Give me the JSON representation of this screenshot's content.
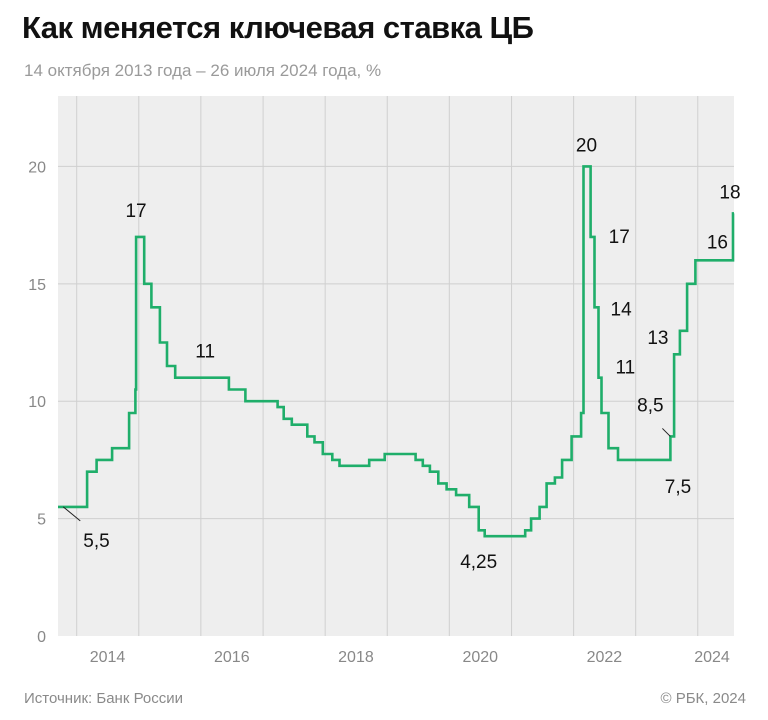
{
  "header": {
    "title": "Как меняется ключевая ставка ЦБ",
    "subtitle": "14 октября 2013 года – 26 июля 2024 года, %"
  },
  "footer": {
    "source": "Источник: Банк России",
    "copyright": "© РБК, 2024"
  },
  "colors": {
    "line": "#1fae6a",
    "plot_bg": "#eeeeee",
    "grid": "#cfcfcf",
    "tick_text": "#888888",
    "annotation_text": "#111111"
  },
  "chart_data": {
    "type": "line",
    "title": "Как меняется ключевая ставка ЦБ",
    "subtitle": "14 октября 2013 года – 26 июля 2024 года, %",
    "xlabel": "",
    "ylabel": "",
    "xlim": [
      "2013-09-13",
      "2024-08-01"
    ],
    "ylim": [
      0,
      23
    ],
    "yticks": [
      0,
      5,
      10,
      15,
      20
    ],
    "xticks": [
      "2014",
      "2016",
      "2018",
      "2020",
      "2022",
      "2024"
    ],
    "grid": true,
    "legend": "none",
    "series": [
      {
        "step": true,
        "points": [
          [
            "2013-09-13",
            5.5
          ],
          [
            "2014-03-03",
            7.0
          ],
          [
            "2014-04-28",
            7.5
          ],
          [
            "2014-07-28",
            8.0
          ],
          [
            "2014-11-05",
            9.5
          ],
          [
            "2014-12-12",
            10.5
          ],
          [
            "2014-12-16",
            17.0
          ],
          [
            "2015-02-02",
            15.0
          ],
          [
            "2015-03-16",
            14.0
          ],
          [
            "2015-05-05",
            12.5
          ],
          [
            "2015-06-16",
            11.5
          ],
          [
            "2015-08-03",
            11.0
          ],
          [
            "2016-06-14",
            10.5
          ],
          [
            "2016-09-19",
            10.0
          ],
          [
            "2017-03-27",
            9.75
          ],
          [
            "2017-05-02",
            9.25
          ],
          [
            "2017-06-19",
            9.0
          ],
          [
            "2017-09-18",
            8.5
          ],
          [
            "2017-10-30",
            8.25
          ],
          [
            "2017-12-18",
            7.75
          ],
          [
            "2018-02-12",
            7.5
          ],
          [
            "2018-03-26",
            7.25
          ],
          [
            "2018-09-17",
            7.5
          ],
          [
            "2018-12-17",
            7.75
          ],
          [
            "2019-06-17",
            7.5
          ],
          [
            "2019-07-29",
            7.25
          ],
          [
            "2019-09-09",
            7.0
          ],
          [
            "2019-10-28",
            6.5
          ],
          [
            "2019-12-16",
            6.25
          ],
          [
            "2020-02-10",
            6.0
          ],
          [
            "2020-04-27",
            5.5
          ],
          [
            "2020-06-22",
            4.5
          ],
          [
            "2020-07-27",
            4.25
          ],
          [
            "2021-03-22",
            4.5
          ],
          [
            "2021-04-26",
            5.0
          ],
          [
            "2021-06-15",
            5.5
          ],
          [
            "2021-07-26",
            6.5
          ],
          [
            "2021-09-13",
            6.75
          ],
          [
            "2021-10-25",
            7.5
          ],
          [
            "2021-12-20",
            8.5
          ],
          [
            "2022-02-14",
            9.5
          ],
          [
            "2022-02-28",
            20.0
          ],
          [
            "2022-04-11",
            17.0
          ],
          [
            "2022-05-04",
            14.0
          ],
          [
            "2022-05-27",
            11.0
          ],
          [
            "2022-06-14",
            9.5
          ],
          [
            "2022-07-25",
            8.0
          ],
          [
            "2022-09-19",
            7.5
          ],
          [
            "2023-07-24",
            8.5
          ],
          [
            "2023-08-15",
            12.0
          ],
          [
            "2023-09-18",
            13.0
          ],
          [
            "2023-10-30",
            15.0
          ],
          [
            "2023-12-18",
            16.0
          ],
          [
            "2024-07-26",
            18.0
          ],
          [
            "2024-08-01",
            18.0
          ]
        ]
      }
    ],
    "annotations": [
      {
        "text": "5,5",
        "x": "2013-10-14",
        "y": 5.5
      },
      {
        "text": "17",
        "x": "2014-12-16",
        "y": 17
      },
      {
        "text": "11",
        "x": "2015-08-03",
        "y": 11
      },
      {
        "text": "4,25",
        "x": "2020-07-27",
        "y": 4.25
      },
      {
        "text": "20",
        "x": "2022-02-28",
        "y": 20
      },
      {
        "text": "17",
        "x": "2022-04-11",
        "y": 17
      },
      {
        "text": "14",
        "x": "2022-05-04",
        "y": 14
      },
      {
        "text": "11",
        "x": "2022-05-27",
        "y": 11
      },
      {
        "text": "7,5",
        "x": "2022-09-19",
        "y": 7.5
      },
      {
        "text": "8,5",
        "x": "2023-07-24",
        "y": 8.5
      },
      {
        "text": "13",
        "x": "2023-09-18",
        "y": 13
      },
      {
        "text": "16",
        "x": "2023-12-18",
        "y": 16
      },
      {
        "text": "18",
        "x": "2024-07-26",
        "y": 18
      }
    ]
  }
}
